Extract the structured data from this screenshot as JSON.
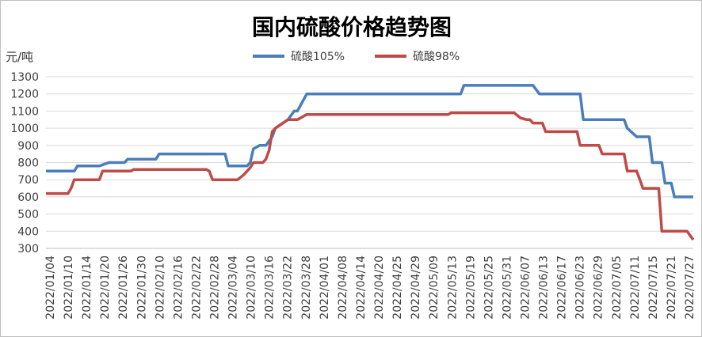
{
  "chart_data": {
    "type": "line",
    "title": "国内硫酸价格趋势图",
    "ylabel": "元/吨",
    "xlabel": "",
    "ylim": [
      300,
      1300
    ],
    "yticks": [
      300,
      400,
      500,
      600,
      700,
      800,
      900,
      1000,
      1100,
      1200,
      1300
    ],
    "grid": true,
    "legend_position": "top",
    "x_start": "2022/01/04",
    "x_end": "2022/07/29",
    "tick_labels": [
      "2022/01/04",
      "2022/01/10",
      "2022/01/14",
      "2022/01/20",
      "2022/01/26",
      "2022/01/30",
      "2022/02/10",
      "2022/02/16",
      "2022/02/22",
      "2022/02/28",
      "2022/03/04",
      "2022/03/10",
      "2022/03/16",
      "2022/03/22",
      "2022/03/28",
      "2022/04/01",
      "2022/04/08",
      "2022/04/14",
      "2022/04/20",
      "2022/04/25",
      "2022/04/29",
      "2022/05/09",
      "2022/05/13",
      "2022/05/19",
      "2022/05/25",
      "2022/05/31",
      "2022/06/07",
      "2022/06/13",
      "2022/06/17",
      "2022/06/23",
      "2022/06/29",
      "2022/07/05",
      "2022/07/11",
      "2022/07/15",
      "2022/07/21",
      "2022/07/27"
    ],
    "series": [
      {
        "name": "硫酸105%",
        "color": "#4a7ebb",
        "points": [
          [
            "2022/01/04",
            750
          ],
          [
            "2022/01/13",
            750
          ],
          [
            "2022/01/14",
            780
          ],
          [
            "2022/01/21",
            780
          ],
          [
            "2022/01/24",
            800
          ],
          [
            "2022/01/29",
            800
          ],
          [
            "2022/01/30",
            820
          ],
          [
            "2022/02/08",
            820
          ],
          [
            "2022/02/09",
            850
          ],
          [
            "2022/03/02",
            850
          ],
          [
            "2022/03/03",
            780
          ],
          [
            "2022/03/09",
            780
          ],
          [
            "2022/03/10",
            800
          ],
          [
            "2022/03/11",
            880
          ],
          [
            "2022/03/13",
            900
          ],
          [
            "2022/03/15",
            900
          ],
          [
            "2022/03/17",
            950
          ],
          [
            "2022/03/18",
            1000
          ],
          [
            "2022/03/22",
            1050
          ],
          [
            "2022/03/24",
            1100
          ],
          [
            "2022/03/25",
            1100
          ],
          [
            "2022/03/28",
            1200
          ],
          [
            "2022/05/16",
            1200
          ],
          [
            "2022/05/17",
            1250
          ],
          [
            "2022/06/08",
            1250
          ],
          [
            "2022/06/10",
            1200
          ],
          [
            "2022/06/23",
            1200
          ],
          [
            "2022/06/24",
            1050
          ],
          [
            "2022/07/07",
            1050
          ],
          [
            "2022/07/08",
            1000
          ],
          [
            "2022/07/11",
            950
          ],
          [
            "2022/07/15",
            950
          ],
          [
            "2022/07/16",
            800
          ],
          [
            "2022/07/19",
            800
          ],
          [
            "2022/07/20",
            680
          ],
          [
            "2022/07/22",
            680
          ],
          [
            "2022/07/23",
            600
          ],
          [
            "2022/07/29",
            600
          ]
        ]
      },
      {
        "name": "硫酸98%",
        "color": "#be4b48",
        "points": [
          [
            "2022/01/04",
            620
          ],
          [
            "2022/01/11",
            620
          ],
          [
            "2022/01/12",
            650
          ],
          [
            "2022/01/13",
            700
          ],
          [
            "2022/01/21",
            700
          ],
          [
            "2022/01/22",
            750
          ],
          [
            "2022/01/31",
            750
          ],
          [
            "2022/02/01",
            760
          ],
          [
            "2022/02/24",
            760
          ],
          [
            "2022/02/25",
            750
          ],
          [
            "2022/02/26",
            700
          ],
          [
            "2022/03/06",
            700
          ],
          [
            "2022/03/08",
            730
          ],
          [
            "2022/03/09",
            750
          ],
          [
            "2022/03/10",
            770
          ],
          [
            "2022/03/11",
            800
          ],
          [
            "2022/03/14",
            800
          ],
          [
            "2022/03/15",
            820
          ],
          [
            "2022/03/16",
            870
          ],
          [
            "2022/03/17",
            980
          ],
          [
            "2022/03/18",
            1000
          ],
          [
            "2022/03/22",
            1050
          ],
          [
            "2022/03/25",
            1050
          ],
          [
            "2022/03/28",
            1080
          ],
          [
            "2022/05/12",
            1080
          ],
          [
            "2022/05/13",
            1090
          ],
          [
            "2022/06/02",
            1090
          ],
          [
            "2022/06/04",
            1060
          ],
          [
            "2022/06/06",
            1050
          ],
          [
            "2022/06/07",
            1050
          ],
          [
            "2022/06/08",
            1030
          ],
          [
            "2022/06/11",
            1030
          ],
          [
            "2022/06/12",
            980
          ],
          [
            "2022/06/22",
            980
          ],
          [
            "2022/06/23",
            900
          ],
          [
            "2022/06/29",
            900
          ],
          [
            "2022/06/30",
            850
          ],
          [
            "2022/07/07",
            850
          ],
          [
            "2022/07/08",
            750
          ],
          [
            "2022/07/11",
            750
          ],
          [
            "2022/07/12",
            700
          ],
          [
            "2022/07/13",
            650
          ],
          [
            "2022/07/18",
            650
          ],
          [
            "2022/07/19",
            400
          ],
          [
            "2022/07/26",
            400
          ],
          [
            "2022/07/27",
            400
          ],
          [
            "2022/07/29",
            350
          ]
        ]
      }
    ]
  }
}
